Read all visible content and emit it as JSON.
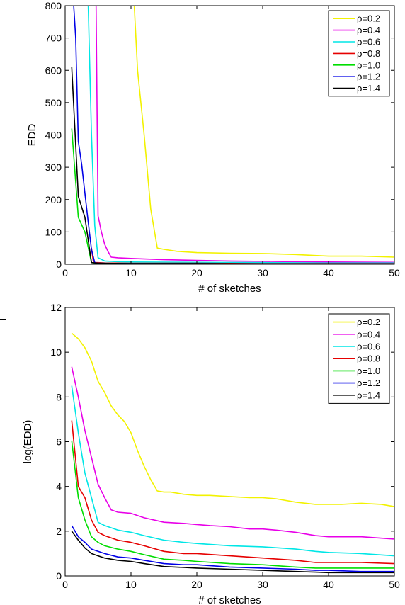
{
  "chart_data": [
    {
      "type": "line",
      "xlabel": "# of sketches",
      "ylabel": "EDD",
      "xlim": [
        0,
        50
      ],
      "ylim": [
        0,
        800
      ],
      "xticks": [
        0,
        10,
        20,
        30,
        40,
        50
      ],
      "yticks": [
        0,
        100,
        200,
        300,
        400,
        500,
        600,
        700,
        800
      ],
      "legend_position": "top-right",
      "grid": false,
      "series": [
        {
          "name": "ρ=0.2",
          "color": "#f2f200",
          "x": [
            10.5,
            11,
            12,
            13,
            14,
            15,
            17,
            20,
            25,
            30,
            35,
            38,
            40,
            45,
            50
          ],
          "y": [
            800,
            600,
            400,
            170,
            50,
            46,
            40,
            36,
            34,
            33,
            30,
            27,
            25,
            25,
            22
          ]
        },
        {
          "name": "ρ=0.4",
          "color": "#e800e8",
          "x": [
            4.7,
            5,
            5.5,
            6,
            6.5,
            7,
            8,
            10,
            15,
            20,
            25,
            30,
            35,
            40,
            50
          ],
          "y": [
            800,
            150,
            100,
            62,
            40,
            22,
            20,
            18,
            14,
            12,
            10,
            9,
            8,
            7,
            6
          ]
        },
        {
          "name": "ρ=0.6",
          "color": "#00e6e6",
          "x": [
            3.5,
            4,
            4.5,
            5,
            6,
            8,
            10,
            20,
            30,
            40,
            50
          ],
          "y": [
            800,
            400,
            120,
            20,
            10,
            8,
            7,
            6,
            5,
            4,
            4
          ]
        },
        {
          "name": "ρ=0.8",
          "color": "#e60000",
          "x": [
            4.0,
            4.3,
            5,
            6,
            10,
            20,
            30,
            40,
            50
          ],
          "y": [
            50,
            5,
            5,
            4,
            3,
            3,
            2,
            2,
            2
          ]
        },
        {
          "name": "ρ=1.0",
          "color": "#00dd00",
          "x": [
            1,
            2,
            3,
            4,
            5,
            10,
            20,
            30,
            40,
            50
          ],
          "y": [
            420,
            145,
            100,
            5,
            3,
            2,
            2,
            1,
            1,
            1
          ]
        },
        {
          "name": "ρ=1.2",
          "color": "#0000e6",
          "x": [
            1.3,
            1.6,
            2,
            2.5,
            3,
            3.5,
            4,
            4.5,
            5,
            10,
            20,
            30,
            40,
            50
          ],
          "y": [
            800,
            700,
            380,
            310,
            220,
            130,
            45,
            5,
            3,
            2,
            2,
            1,
            1,
            1
          ]
        },
        {
          "name": "ρ=1.4",
          "color": "#000000",
          "x": [
            1,
            2,
            3,
            4,
            5,
            10,
            20,
            30,
            40,
            50
          ],
          "y": [
            610,
            210,
            145,
            5,
            3,
            2,
            2,
            1,
            1,
            1
          ]
        }
      ]
    },
    {
      "type": "line",
      "xlabel": "# of sketches",
      "ylabel": "log(EDD)",
      "xlim": [
        0,
        50
      ],
      "ylim": [
        0,
        12
      ],
      "xticks": [
        0,
        10,
        20,
        30,
        40,
        50
      ],
      "yticks": [
        0,
        2,
        4,
        6,
        8,
        10,
        12
      ],
      "legend_position": "top-right",
      "grid": false,
      "series": [
        {
          "name": "ρ=0.2",
          "color": "#f2f200",
          "x": [
            1,
            2,
            3,
            4,
            5,
            6,
            7,
            8,
            9,
            10,
            11,
            12,
            13,
            14,
            15,
            16,
            18,
            20,
            22,
            25,
            28,
            30,
            32,
            35,
            38,
            40,
            42,
            45,
            48,
            50
          ],
          "y": [
            10.85,
            10.6,
            10.2,
            9.6,
            8.7,
            8.2,
            7.6,
            7.2,
            6.9,
            6.4,
            5.6,
            4.9,
            4.3,
            3.8,
            3.75,
            3.75,
            3.65,
            3.6,
            3.6,
            3.55,
            3.5,
            3.5,
            3.45,
            3.3,
            3.2,
            3.2,
            3.2,
            3.25,
            3.2,
            3.1
          ]
        },
        {
          "name": "ρ=0.4",
          "color": "#e800e8",
          "x": [
            1,
            2,
            3,
            4,
            5,
            6,
            7,
            8,
            10,
            12,
            15,
            18,
            20,
            22,
            25,
            28,
            30,
            32,
            35,
            38,
            40,
            45,
            50
          ],
          "y": [
            9.35,
            8.0,
            6.5,
            5.3,
            4.1,
            3.5,
            2.95,
            2.85,
            2.8,
            2.6,
            2.4,
            2.35,
            2.3,
            2.25,
            2.2,
            2.1,
            2.1,
            2.05,
            1.95,
            1.8,
            1.75,
            1.75,
            1.65
          ]
        },
        {
          "name": "ρ=0.6",
          "color": "#00e6e6",
          "x": [
            1,
            2,
            3,
            4,
            5,
            6,
            8,
            10,
            12,
            15,
            18,
            20,
            25,
            30,
            35,
            38,
            40,
            45,
            50
          ],
          "y": [
            8.5,
            6.4,
            4.6,
            3.5,
            2.4,
            2.25,
            2.05,
            1.95,
            1.8,
            1.6,
            1.5,
            1.45,
            1.35,
            1.3,
            1.2,
            1.1,
            1.05,
            1.0,
            0.9
          ]
        },
        {
          "name": "ρ=0.8",
          "color": "#e60000",
          "x": [
            1,
            2,
            3,
            4,
            5,
            6,
            8,
            10,
            12,
            15,
            18,
            20,
            25,
            30,
            35,
            38,
            40,
            45,
            50
          ],
          "y": [
            6.95,
            4.0,
            3.5,
            2.5,
            1.95,
            1.8,
            1.6,
            1.5,
            1.35,
            1.1,
            1.0,
            1.0,
            0.9,
            0.8,
            0.7,
            0.6,
            0.6,
            0.6,
            0.55
          ]
        },
        {
          "name": "ρ=1.0",
          "color": "#00dd00",
          "x": [
            1,
            2,
            3,
            4,
            5,
            6,
            8,
            10,
            12,
            15,
            18,
            20,
            25,
            30,
            35,
            38,
            40,
            45,
            50
          ],
          "y": [
            6.05,
            3.5,
            2.5,
            1.75,
            1.5,
            1.35,
            1.2,
            1.1,
            0.95,
            0.75,
            0.7,
            0.65,
            0.55,
            0.5,
            0.4,
            0.35,
            0.35,
            0.35,
            0.35
          ]
        },
        {
          "name": "ρ=1.2",
          "color": "#0000e6",
          "x": [
            1,
            2,
            3,
            4,
            5,
            6,
            8,
            10,
            12,
            15,
            18,
            20,
            25,
            30,
            35,
            38,
            40,
            45,
            50
          ],
          "y": [
            2.25,
            1.75,
            1.5,
            1.2,
            1.1,
            1.0,
            0.85,
            0.8,
            0.7,
            0.55,
            0.5,
            0.5,
            0.4,
            0.35,
            0.3,
            0.25,
            0.25,
            0.2,
            0.2
          ]
        },
        {
          "name": "ρ=1.4",
          "color": "#000000",
          "x": [
            1,
            2,
            3,
            4,
            5,
            6,
            8,
            10,
            12,
            15,
            18,
            20,
            25,
            30,
            35,
            38,
            40,
            45,
            50
          ],
          "y": [
            2.0,
            1.6,
            1.25,
            1.0,
            0.9,
            0.8,
            0.7,
            0.65,
            0.55,
            0.42,
            0.38,
            0.35,
            0.3,
            0.25,
            0.2,
            0.17,
            0.15,
            0.15,
            0.15
          ]
        }
      ]
    }
  ]
}
